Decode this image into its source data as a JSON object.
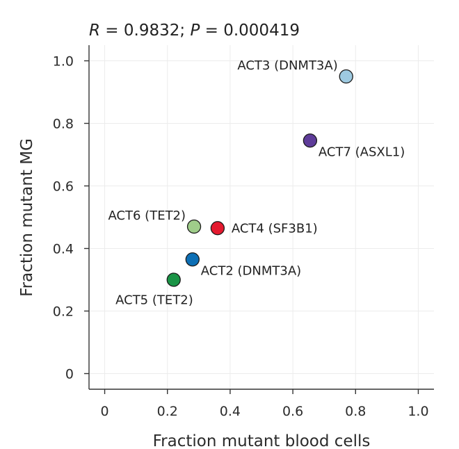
{
  "chart_data": {
    "type": "scatter",
    "title": "",
    "stats": {
      "r_symbol": "R",
      "r_value": "0.9832",
      "p_symbol": "P",
      "p_value": "0.000419"
    },
    "xlabel": "Fraction mutant blood cells",
    "ylabel": "Fraction mutant MG",
    "xlim": [
      -0.05,
      1.05
    ],
    "ylim": [
      -0.05,
      1.05
    ],
    "xticks": [
      0,
      0.2,
      0.4,
      0.6,
      0.8,
      1.0
    ],
    "xtick_labels": [
      "0",
      "0.2",
      "0.4",
      "0.6",
      "0.8",
      "1.0"
    ],
    "yticks": [
      0,
      0.2,
      0.4,
      0.6,
      0.8,
      1.0
    ],
    "ytick_labels": [
      "0",
      "0.2",
      "0.4",
      "0.6",
      "0.8",
      "1.0"
    ],
    "grid": true,
    "points": [
      {
        "label": "ACT3 (DNMT3A)",
        "x": 0.77,
        "y": 0.95,
        "color": "#9ecae1",
        "label_side": "left-up"
      },
      {
        "label": "ACT7 (ASXL1)",
        "x": 0.655,
        "y": 0.745,
        "color": "#5e3c99",
        "label_side": "right-down"
      },
      {
        "label": "ACT6 (TET2)",
        "x": 0.285,
        "y": 0.47,
        "color": "#9fcd8a",
        "label_side": "left-up"
      },
      {
        "label": "ACT4 (SF3B1)",
        "x": 0.36,
        "y": 0.465,
        "color": "#e41a2f",
        "label_side": "right"
      },
      {
        "label": "ACT2 (DNMT3A)",
        "x": 0.28,
        "y": 0.365,
        "color": "#0d6fb5",
        "label_side": "right-down"
      },
      {
        "label": "ACT5 (TET2)",
        "x": 0.22,
        "y": 0.3,
        "color": "#1a9446",
        "label_side": "left-down"
      }
    ]
  }
}
